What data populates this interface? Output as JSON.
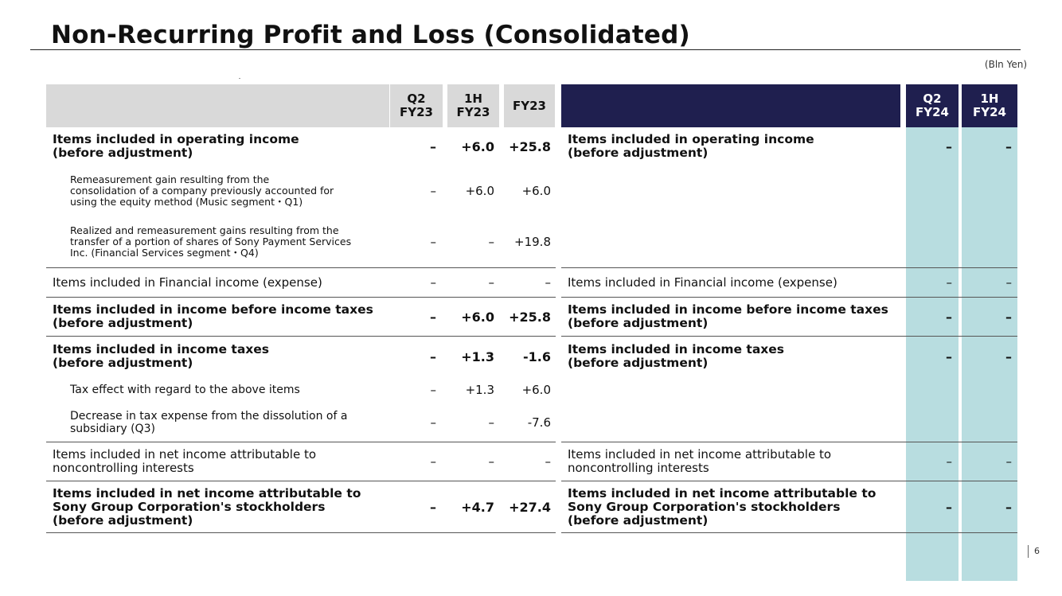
{
  "title": "Non-Recurring Profit and Loss (Consolidated)",
  "unit": "(Bln Yen)",
  "page_number": "6",
  "left_headers": [
    "Q2\nFY23",
    "1H\nFY23",
    "FY23"
  ],
  "right_headers": [
    "Q2\nFY24",
    "1H\nFY24"
  ],
  "rows": [
    {
      "label": "Items included in operating income\n(before adjustment)",
      "style": "bold",
      "left": [
        "–",
        "+6.0",
        "+25.8"
      ],
      "right_label": "Items included in operating income\n(before adjustment)",
      "right": [
        "–",
        "–"
      ]
    },
    {
      "label": "Remeasurement gain resulting from the\nconsolidation of a company previously accounted for\nusing the equity method (Music segment・Q1)",
      "style": "small",
      "left": [
        "–",
        "+6.0",
        "+6.0"
      ],
      "right_label": "",
      "right": [
        "",
        ""
      ]
    },
    {
      "label": "Realized and remeasurement gains resulting from the\ntransfer of a portion of shares of Sony Payment Services\nInc. (Financial Services segment・Q4)",
      "style": "small",
      "left": [
        "–",
        "–",
        "+19.8"
      ],
      "right_label": "",
      "right": [
        "",
        ""
      ]
    },
    {
      "label": "Items included in Financial income (expense)",
      "style": "norm",
      "left": [
        "–",
        "–",
        "–"
      ],
      "right_label": "Items included in Financial income (expense)",
      "right": [
        "–",
        "–"
      ]
    },
    {
      "label": "Items included in income before income taxes\n(before adjustment)",
      "style": "bold",
      "left": [
        "–",
        "+6.0",
        "+25.8"
      ],
      "right_label": "Items included in income before income taxes\n(before adjustment)",
      "right": [
        "–",
        "–"
      ]
    },
    {
      "label": "Items included in income taxes\n (before adjustment)",
      "style": "bold",
      "left": [
        "–",
        "+1.3",
        "-1.6"
      ],
      "right_label": "Items included in income taxes\n (before adjustment)",
      "right": [
        "–",
        "–"
      ]
    },
    {
      "label": "Tax effect with regard to the above items",
      "style": "smallish",
      "left": [
        "–",
        "+1.3",
        "+6.0"
      ],
      "right_label": "",
      "right": [
        "",
        ""
      ]
    },
    {
      "label": "Decrease in tax expense from the dissolution of a\nsubsidiary (Q3)",
      "style": "smallish",
      "left": [
        "–",
        "–",
        "-7.6"
      ],
      "right_label": "",
      "right": [
        "",
        ""
      ]
    },
    {
      "label": "Items included in net income attributable to\nnoncontrolling interests",
      "style": "norm",
      "left": [
        "–",
        "–",
        "–"
      ],
      "right_label": "Items included in net income attributable to\nnoncontrolling interests",
      "right": [
        "–",
        "–"
      ]
    },
    {
      "label": "Items included in net income attributable to\nSony Group Corporation's stockholders\n(before adjustment)",
      "style": "bold",
      "left": [
        "–",
        "+4.7",
        "+27.4"
      ],
      "right_label": "Items included in net income attributable to\nSony Group Corporation's stockholders\n(before adjustment)",
      "right": [
        "–",
        "–"
      ]
    }
  ]
}
